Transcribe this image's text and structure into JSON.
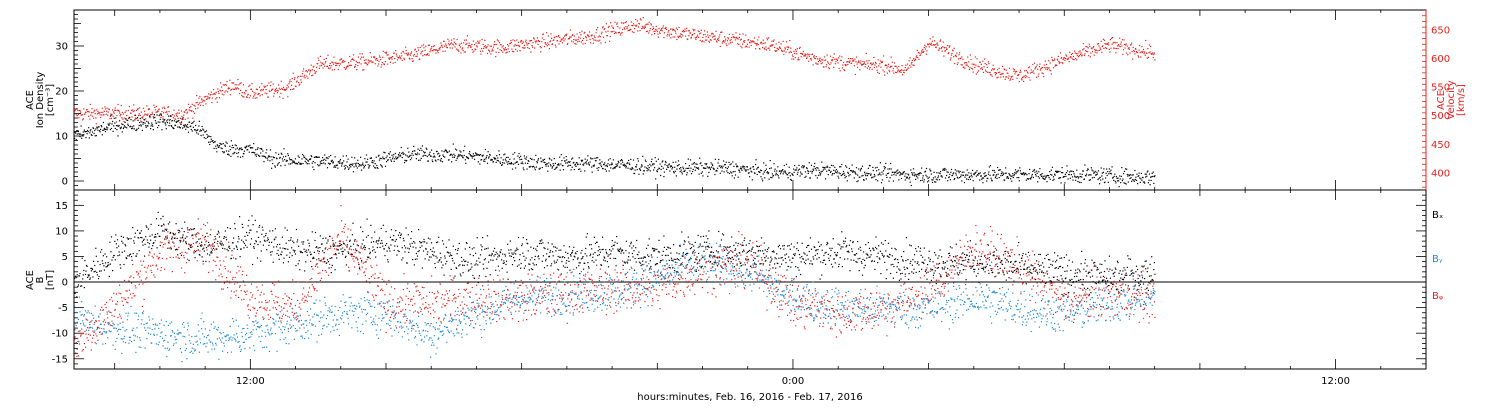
{
  "colors": {
    "black": "#000000",
    "red": "#e8201c",
    "blue": "#1e8ad6"
  },
  "x_axis": {
    "label": "hours:minutes, Feb. 16, 2016 - Feb. 17, 2016",
    "tick_labels": [
      "12:00",
      "0:00",
      "12:00"
    ],
    "tick_values_hours": [
      12,
      24,
      36
    ],
    "range_hours": [
      8.1,
      38.0
    ]
  },
  "chart_data": [
    {
      "type": "scatter",
      "panel": "top",
      "ylabel_left": [
        "ACE",
        "Ion Density",
        "[cm⁻³]"
      ],
      "ylabel_right": [
        "ACE",
        "Velocity",
        "[km/s]"
      ],
      "ylim_left": [
        -2,
        38
      ],
      "ylim_right": [
        370,
        685
      ],
      "yticks_left": [
        0,
        10,
        20,
        30
      ],
      "yticks_right": [
        400,
        450,
        500,
        550,
        600,
        650
      ],
      "series": [
        {
          "axis": "left",
          "color": "black",
          "points": [
            [
              8.1,
              10
            ],
            [
              9.0,
              12.5
            ],
            [
              10.0,
              13.5
            ],
            [
              10.8,
              12
            ],
            [
              11.3,
              7.5
            ],
            [
              12.0,
              7
            ],
            [
              12.5,
              5
            ],
            [
              13.5,
              4.5
            ],
            [
              14.5,
              4
            ],
            [
              15.5,
              6
            ],
            [
              16.5,
              6
            ],
            [
              17.5,
              5
            ],
            [
              18.5,
              4
            ],
            [
              19.5,
              4
            ],
            [
              20.5,
              3.5
            ],
            [
              21.5,
              3
            ],
            [
              22.5,
              3
            ],
            [
              23.5,
              2
            ],
            [
              24.5,
              2.5
            ],
            [
              25.5,
              2
            ],
            [
              26.5,
              1.5
            ],
            [
              27.5,
              1.5
            ],
            [
              28.5,
              1.5
            ],
            [
              29.5,
              1.5
            ],
            [
              30.5,
              1.5
            ],
            [
              31.5,
              1
            ],
            [
              32.0,
              1
            ]
          ]
        },
        {
          "axis": "right",
          "color": "red",
          "points": [
            [
              8.1,
              505
            ],
            [
              9.0,
              505
            ],
            [
              10.0,
              505
            ],
            [
              10.5,
              503
            ],
            [
              11.0,
              530
            ],
            [
              11.6,
              555
            ],
            [
              12.0,
              540
            ],
            [
              12.8,
              550
            ],
            [
              13.5,
              590
            ],
            [
              14.5,
              595
            ],
            [
              15.5,
              605
            ],
            [
              16.5,
              625
            ],
            [
              17.5,
              620
            ],
            [
              18.5,
              630
            ],
            [
              19.5,
              640
            ],
            [
              20.5,
              660
            ],
            [
              21.5,
              645
            ],
            [
              22.5,
              635
            ],
            [
              23.5,
              625
            ],
            [
              24.5,
              600
            ],
            [
              25.5,
              590
            ],
            [
              26.0,
              590
            ],
            [
              26.5,
              580
            ],
            [
              27.0,
              630
            ],
            [
              28.0,
              590
            ],
            [
              29.0,
              570
            ],
            [
              30.0,
              600
            ],
            [
              31.0,
              625
            ],
            [
              32.0,
              610
            ]
          ]
        }
      ]
    },
    {
      "type": "scatter",
      "panel": "bottom",
      "ylabel_left": [
        "ACE",
        "B",
        "[nT]"
      ],
      "ylim": [
        -17,
        18
      ],
      "yticks": [
        -15,
        -10,
        -5,
        0,
        5,
        10,
        15
      ],
      "zero_line": true,
      "series": [
        {
          "name": "Bₓ",
          "color": "black",
          "points": [
            [
              8.1,
              0
            ],
            [
              9.0,
              6
            ],
            [
              10.0,
              10
            ],
            [
              11.0,
              7
            ],
            [
              12.0,
              9
            ],
            [
              13.0,
              6
            ],
            [
              14.0,
              6
            ],
            [
              15.0,
              8
            ],
            [
              16.0,
              6
            ],
            [
              17.0,
              4
            ],
            [
              18.0,
              6
            ],
            [
              19.0,
              5
            ],
            [
              20.0,
              6
            ],
            [
              21.0,
              5
            ],
            [
              22.0,
              6
            ],
            [
              23.0,
              6
            ],
            [
              24.0,
              5
            ],
            [
              25.0,
              6
            ],
            [
              26.0,
              5
            ],
            [
              27.0,
              4
            ],
            [
              28.0,
              4
            ],
            [
              29.0,
              3
            ],
            [
              30.0,
              2
            ],
            [
              31.0,
              1
            ],
            [
              32.0,
              2
            ]
          ]
        },
        {
          "name": "Bᵧ",
          "color": "blue",
          "points": [
            [
              8.1,
              -7
            ],
            [
              9.0,
              -9
            ],
            [
              10.0,
              -10
            ],
            [
              11.0,
              -11
            ],
            [
              12.0,
              -10
            ],
            [
              13.0,
              -8
            ],
            [
              14.0,
              -6
            ],
            [
              15.0,
              -6
            ],
            [
              16.0,
              -10
            ],
            [
              17.0,
              -6
            ],
            [
              18.0,
              -3
            ],
            [
              19.0,
              -2
            ],
            [
              20.0,
              -2
            ],
            [
              21.0,
              1
            ],
            [
              22.0,
              4
            ],
            [
              23.0,
              2
            ],
            [
              24.0,
              -3
            ],
            [
              25.0,
              -5
            ],
            [
              26.0,
              -5
            ],
            [
              27.0,
              -5
            ],
            [
              28.0,
              -3
            ],
            [
              29.0,
              -5
            ],
            [
              30.0,
              -6
            ],
            [
              31.0,
              -4
            ],
            [
              32.0,
              -3
            ]
          ]
        },
        {
          "name": "Bᵩ",
          "color": "red",
          "points": [
            [
              8.1,
              -12
            ],
            [
              9.0,
              -5
            ],
            [
              10.0,
              6
            ],
            [
              11.0,
              8
            ],
            [
              12.0,
              -3
            ],
            [
              13.0,
              -5
            ],
            [
              14.0,
              9
            ],
            [
              15.0,
              -4
            ],
            [
              16.0,
              -4
            ],
            [
              17.0,
              -3
            ],
            [
              18.0,
              -3
            ],
            [
              19.0,
              -2
            ],
            [
              20.0,
              -1
            ],
            [
              21.0,
              -1
            ],
            [
              22.0,
              3
            ],
            [
              23.0,
              4
            ],
            [
              24.0,
              -4
            ],
            [
              25.0,
              -6
            ],
            [
              26.0,
              -5
            ],
            [
              27.0,
              -2
            ],
            [
              28.0,
              7
            ],
            [
              29.0,
              3
            ],
            [
              30.0,
              -4
            ],
            [
              31.0,
              -2
            ],
            [
              32.0,
              -3
            ]
          ]
        }
      ],
      "legend": [
        "Bₓ",
        "Bᵧ",
        "Bᵩ"
      ]
    }
  ]
}
